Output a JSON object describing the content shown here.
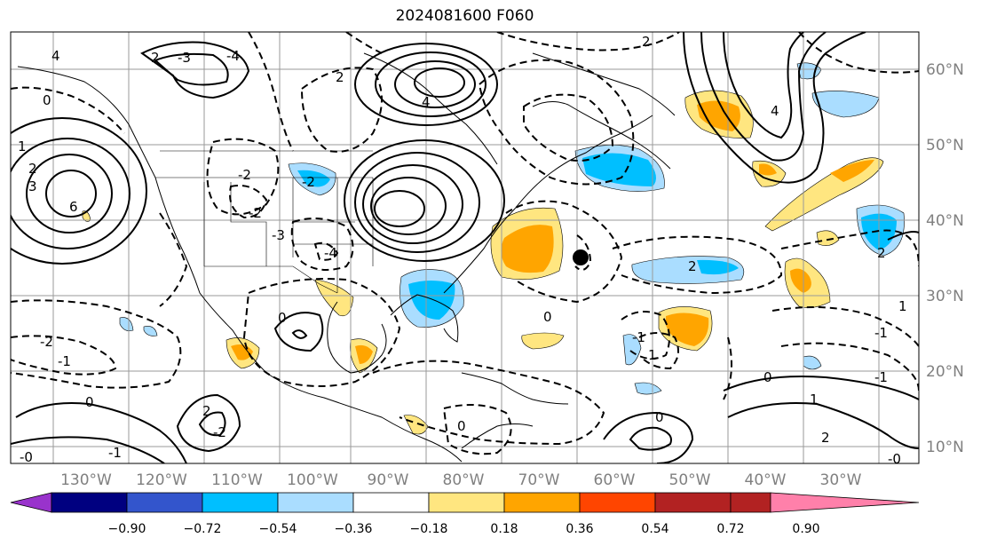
{
  "title": "2024081600 F060",
  "map": {
    "lon_labels": [
      "130°W",
      "120°W",
      "110°W",
      "100°W",
      "90°W",
      "80°W",
      "70°W",
      "60°W",
      "50°W",
      "40°W",
      "30°W"
    ],
    "lat_labels": [
      "60°N",
      "50°N",
      "40°N",
      "30°N",
      "20°N",
      "10°N"
    ],
    "marker": {
      "lon": -65,
      "lat": 35
    }
  },
  "contour_labels": [
    "4",
    "2",
    "0",
    "-1",
    "-2",
    "-3",
    "-4",
    "1",
    "2",
    "3",
    "6",
    "0",
    "-1",
    "2",
    "1",
    "0",
    "-0",
    "-2",
    "2",
    "-2",
    "4",
    "-4",
    "-3",
    "-2",
    "4",
    "2",
    "-1",
    "1",
    "0",
    "-1",
    "0",
    "2",
    "-2",
    "0",
    "0",
    "1",
    "-1",
    "2",
    "-0",
    "2"
  ],
  "colorbar": {
    "colors": [
      "#9933cc",
      "#000080",
      "#3355cc",
      "#00bfff",
      "#aaddff",
      "#ffffff",
      "#ffe680",
      "#ffa500",
      "#ff4500",
      "#b22222",
      "#ff80aa"
    ],
    "ticks": [
      "−0.90",
      "−0.72",
      "−0.54",
      "−0.36",
      "−0.18",
      "0.18",
      "0.36",
      "0.54",
      "0.72",
      "0.90"
    ]
  }
}
